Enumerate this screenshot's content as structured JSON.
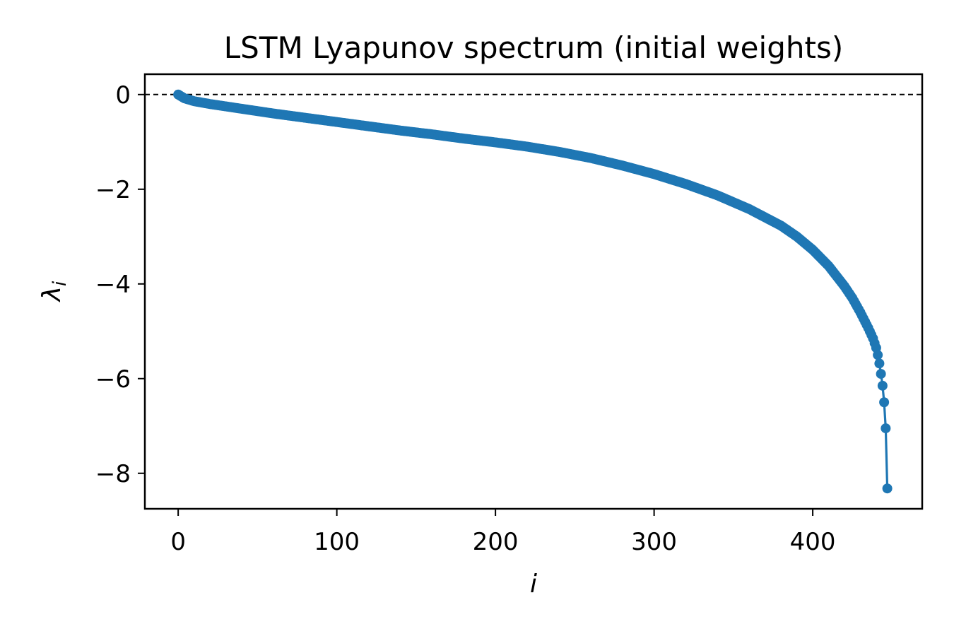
{
  "chart_data": {
    "type": "line",
    "title": "LSTM Lyapunov spectrum (initial weights)",
    "xlabel": "i",
    "ylabel": "λ",
    "ylabel_subscript": "i",
    "xlim": [
      -21,
      469
    ],
    "ylim": [
      -8.75,
      0.43
    ],
    "xticks": [
      0,
      100,
      200,
      300,
      400
    ],
    "yticks": [
      0,
      -2,
      -4,
      -6,
      -8
    ],
    "xtick_labels": [
      "0",
      "100",
      "200",
      "300",
      "400"
    ],
    "ytick_labels": [
      "0",
      "−2",
      "−4",
      "−6",
      "−8"
    ],
    "reference_line": {
      "y": 0,
      "style": "dashed",
      "color": "#000000"
    },
    "grid": false,
    "series": [
      {
        "color": "#1f77b4",
        "marker": "circle",
        "x": [
          0,
          1,
          2,
          3,
          4,
          5,
          10,
          20,
          40,
          60,
          80,
          100,
          120,
          140,
          160,
          180,
          200,
          220,
          240,
          260,
          280,
          300,
          320,
          340,
          360,
          380,
          390,
          400,
          410,
          420,
          425,
          430,
          435,
          438,
          440,
          441,
          442,
          443,
          444,
          445,
          446,
          447
        ],
        "y": [
          0.0,
          -0.02,
          -0.04,
          -0.06,
          -0.08,
          -0.09,
          -0.14,
          -0.2,
          -0.3,
          -0.4,
          -0.49,
          -0.58,
          -0.67,
          -0.76,
          -0.84,
          -0.93,
          -1.01,
          -1.1,
          -1.21,
          -1.34,
          -1.5,
          -1.68,
          -1.89,
          -2.13,
          -2.42,
          -2.77,
          -3.0,
          -3.28,
          -3.62,
          -4.05,
          -4.3,
          -4.6,
          -4.93,
          -5.15,
          -5.35,
          -5.5,
          -5.68,
          -5.9,
          -6.15,
          -6.5,
          -7.05,
          -8.32
        ]
      }
    ]
  }
}
